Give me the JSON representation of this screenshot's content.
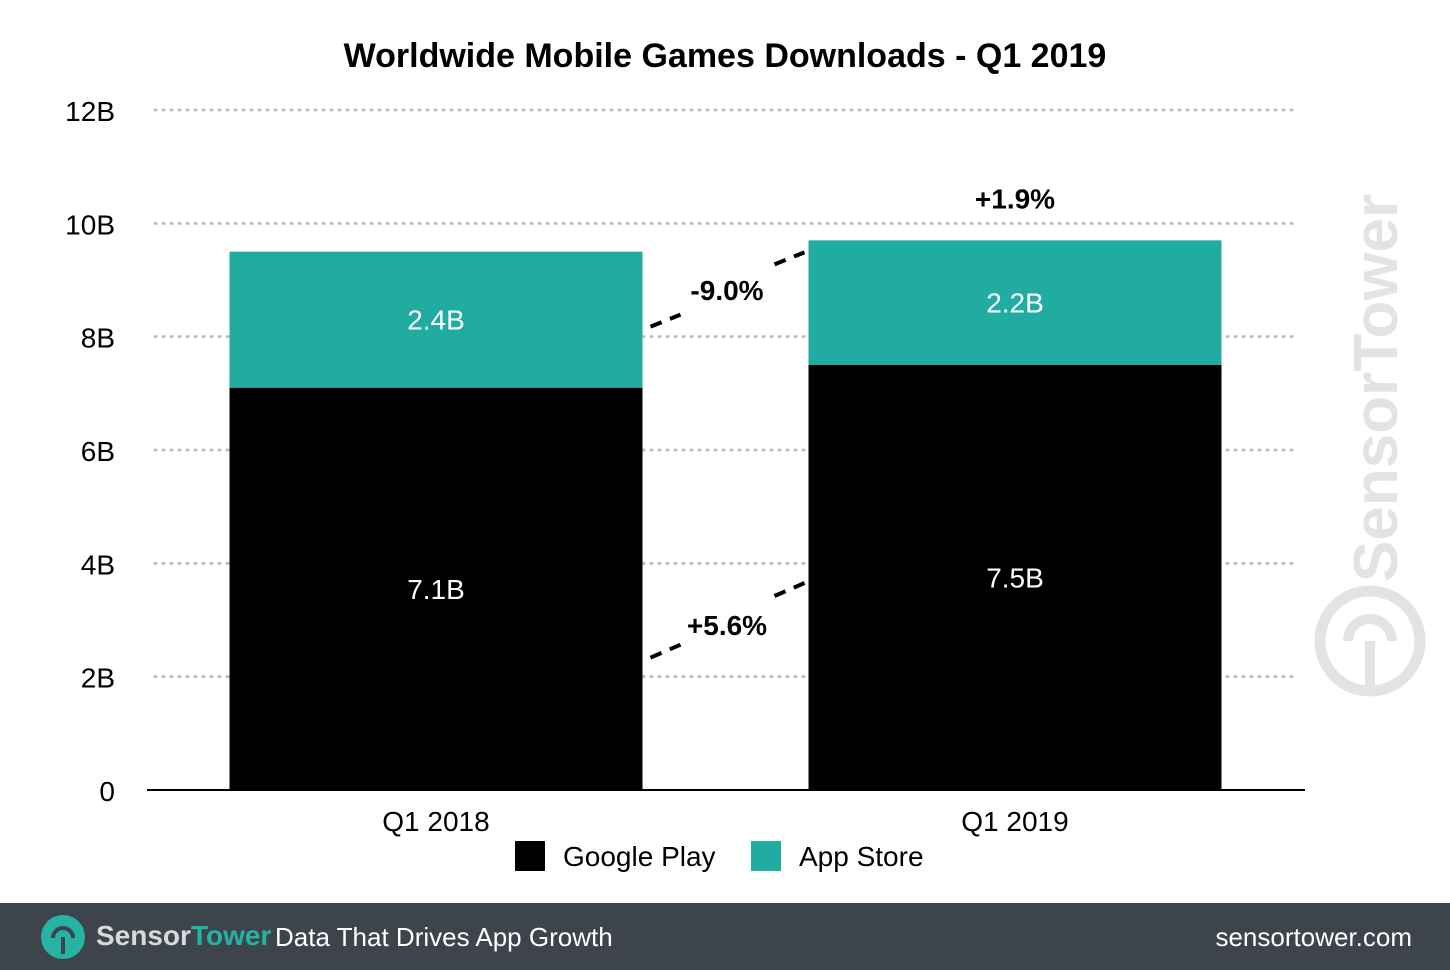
{
  "chart_data": {
    "type": "bar",
    "stacked": true,
    "title": "Worldwide Mobile Games Downloads - Q1 2019",
    "categories": [
      "Q1 2018",
      "Q1 2019"
    ],
    "series": [
      {
        "name": "Google Play",
        "color": "#000000",
        "values": [
          7.1,
          7.5
        ],
        "labels": [
          "7.1B",
          "7.5B"
        ]
      },
      {
        "name": "App Store",
        "color": "#20aca0",
        "values": [
          2.4,
          2.2
        ],
        "labels": [
          "2.4B",
          "2.2B"
        ]
      }
    ],
    "ylim": [
      0,
      12
    ],
    "yticks": [
      0,
      2,
      4,
      6,
      8,
      10,
      12
    ],
    "ytick_labels": [
      "0",
      "2B",
      "4B",
      "6B",
      "8B",
      "10B",
      "12B"
    ],
    "grid": "dotted",
    "legend": "bottom-center",
    "annotations": {
      "google_play_change": "+5.6%",
      "app_store_change": "-9.0%",
      "total_change": "+1.9%"
    }
  },
  "watermark": "SensorTower",
  "footer": {
    "brand_sensor": "Sensor",
    "brand_tower": "Tower",
    "tagline": "Data That Drives App Growth",
    "url": "sensortower.com"
  }
}
